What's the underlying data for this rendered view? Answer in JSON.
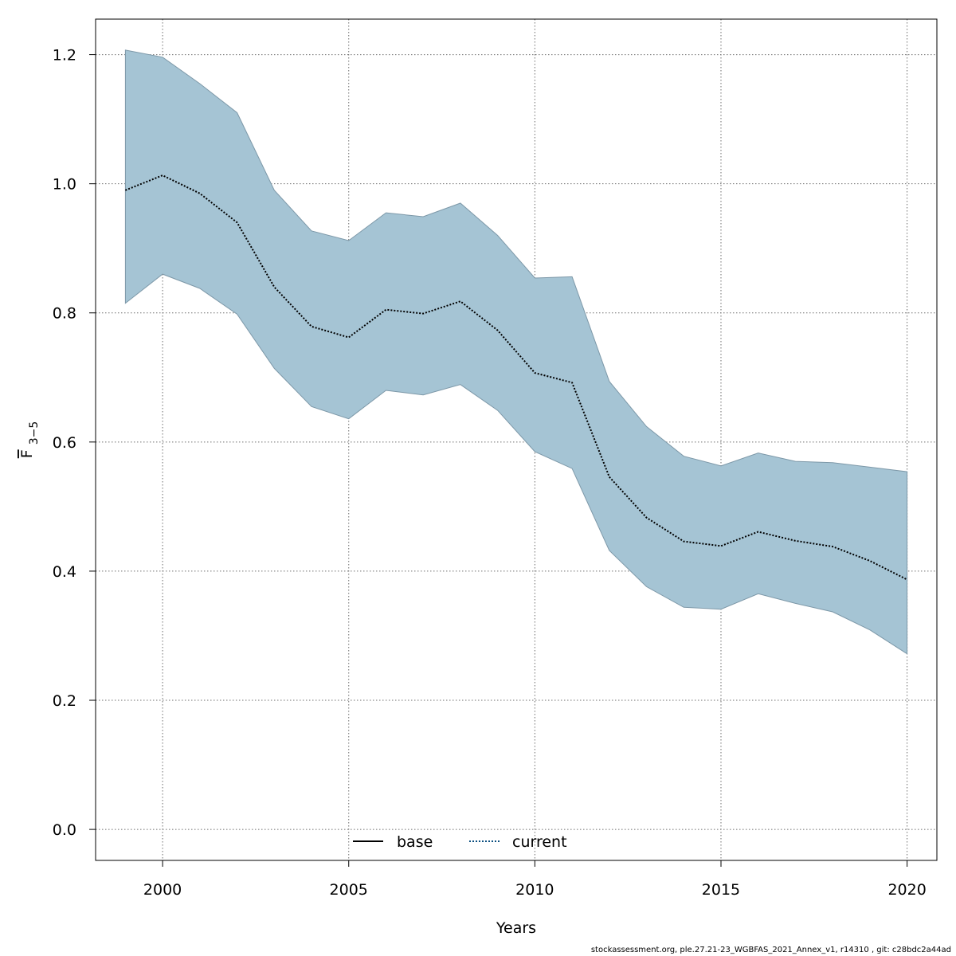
{
  "chart_data": {
    "type": "line",
    "xlabel": "Years",
    "ylabel": {
      "main": "F",
      "subscript": "3−5"
    },
    "xlim": [
      1998.2,
      2020.8
    ],
    "ylim": [
      -0.048,
      1.255
    ],
    "x_ticks": [
      2000,
      2005,
      2010,
      2015,
      2020
    ],
    "y_ticks": [
      0.0,
      0.2,
      0.4,
      0.6,
      0.8,
      1.0,
      1.2
    ],
    "y_tick_labels": [
      "0.0",
      "0.2",
      "0.4",
      "0.6",
      "0.8",
      "1.0",
      "1.2"
    ],
    "grid": true,
    "legend": {
      "placement": "bottom-center",
      "entries": [
        {
          "label": "base",
          "style": "solid",
          "color": "#000000"
        },
        {
          "label": "current",
          "style": "dotted",
          "color": "#0b4f80"
        }
      ]
    },
    "x": [
      1999,
      2000,
      2001,
      2002,
      2003,
      2004,
      2005,
      2006,
      2007,
      2008,
      2009,
      2010,
      2011,
      2012,
      2013,
      2014,
      2015,
      2016,
      2017,
      2018,
      2019,
      2020
    ],
    "series": [
      {
        "name": "current",
        "style": "dotted",
        "values": [
          0.99,
          1.013,
          0.985,
          0.94,
          0.84,
          0.779,
          0.762,
          0.805,
          0.799,
          0.818,
          0.773,
          0.707,
          0.692,
          0.546,
          0.483,
          0.446,
          0.439,
          0.461,
          0.447,
          0.438,
          0.416,
          0.387
        ],
        "lower": [
          0.815,
          0.86,
          0.838,
          0.798,
          0.714,
          0.655,
          0.636,
          0.68,
          0.673,
          0.689,
          0.649,
          0.585,
          0.559,
          0.432,
          0.376,
          0.344,
          0.341,
          0.365,
          0.35,
          0.337,
          0.309,
          0.272
        ],
        "upper": [
          1.207,
          1.196,
          1.155,
          1.11,
          0.99,
          0.927,
          0.912,
          0.955,
          0.949,
          0.97,
          0.92,
          0.854,
          0.856,
          0.694,
          0.624,
          0.578,
          0.563,
          0.583,
          0.57,
          0.568,
          0.561,
          0.554
        ]
      }
    ],
    "colors": {
      "band": "#a5c4d4",
      "band_edge": "#7d98a8",
      "current_line": "#0b4f80"
    }
  },
  "footer": "stockassessment.org, ple.27.21-23_WGBFAS_2021_Annex_v1, r14310 , git: c28bdc2a44ad"
}
